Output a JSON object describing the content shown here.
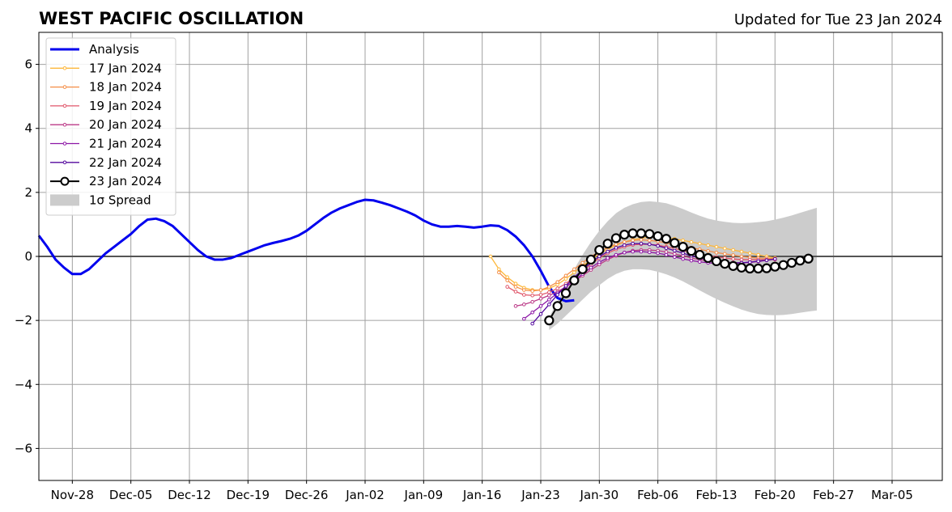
{
  "title": "WEST PACIFIC OSCILLATION",
  "updated": "Updated for Tue 23 Jan 2024",
  "chart_data": {
    "type": "line",
    "xlim": [
      "2023-11-24",
      "2024-03-11"
    ],
    "ylim": [
      -7,
      7
    ],
    "yticks": [
      6,
      4,
      2,
      0,
      -2,
      -4,
      -6
    ],
    "ytick_labels": [
      "6",
      "4",
      "2",
      "0",
      "−2",
      "−4",
      "−6"
    ],
    "xticks": [
      "2023-11-28",
      "2023-12-05",
      "2023-12-12",
      "2023-12-19",
      "2023-12-26",
      "2024-01-02",
      "2024-01-09",
      "2024-01-16",
      "2024-01-23",
      "2024-01-30",
      "2024-02-06",
      "2024-02-13",
      "2024-02-20",
      "2024-02-27",
      "2024-03-05"
    ],
    "xtick_labels": [
      "Nov-28",
      "Dec-05",
      "Dec-12",
      "Dec-19",
      "Dec-26",
      "Jan-02",
      "Jan-09",
      "Jan-16",
      "Jan-23",
      "Jan-30",
      "Feb-06",
      "Feb-13",
      "Feb-20",
      "Feb-27",
      "Mar-05"
    ],
    "grid": true,
    "legend_position": "top-left",
    "legend": [
      "Analysis",
      "17 Jan 2024",
      "18 Jan 2024",
      "19 Jan 2024",
      "20 Jan 2024",
      "21 Jan 2024",
      "22 Jan 2024",
      "23 Jan 2024",
      "1σ Spread"
    ],
    "analysis": {
      "name": "Analysis",
      "color": "#0000ee",
      "start": "2023-11-24",
      "values": [
        0.65,
        0.3,
        -0.1,
        -0.35,
        -0.55,
        -0.55,
        -0.4,
        -0.15,
        0.1,
        0.3,
        0.5,
        0.7,
        0.95,
        1.15,
        1.18,
        1.1,
        0.95,
        0.7,
        0.45,
        0.2,
        0.0,
        -0.1,
        -0.1,
        -0.05,
        0.05,
        0.15,
        0.25,
        0.35,
        0.42,
        0.48,
        0.55,
        0.65,
        0.8,
        1.0,
        1.2,
        1.37,
        1.5,
        1.6,
        1.7,
        1.77,
        1.75,
        1.68,
        1.6,
        1.5,
        1.4,
        1.28,
        1.12,
        1.0,
        0.93,
        0.93,
        0.95,
        0.93,
        0.9,
        0.93,
        0.97,
        0.95,
        0.82,
        0.62,
        0.35,
        0.0,
        -0.45,
        -0.95,
        -1.3,
        -1.4,
        -1.37
      ]
    },
    "forecasts": [
      {
        "name": "17 Jan 2024",
        "color": "#fdb73a",
        "start": "2024-01-17",
        "values": [
          0.0,
          -0.4,
          -0.65,
          -0.85,
          -0.98,
          -1.05,
          -1.05,
          -1.0,
          -0.88,
          -0.7,
          -0.5,
          -0.3,
          -0.1,
          0.08,
          0.22,
          0.35,
          0.45,
          0.52,
          0.57,
          0.6,
          0.6,
          0.58,
          0.55,
          0.5,
          0.45,
          0.4,
          0.35,
          0.3,
          0.25,
          0.2,
          0.15,
          0.1,
          0.05,
          0.0,
          -0.05
        ]
      },
      {
        "name": "18 Jan 2024",
        "color": "#f48d46",
        "start": "2024-01-18",
        "values": [
          -0.5,
          -0.75,
          -0.95,
          -1.05,
          -1.08,
          -1.05,
          -0.95,
          -0.8,
          -0.6,
          -0.4,
          -0.2,
          0.0,
          0.15,
          0.28,
          0.38,
          0.45,
          0.5,
          0.52,
          0.5,
          0.47,
          0.42,
          0.37,
          0.32,
          0.27,
          0.22,
          0.17,
          0.12,
          0.08,
          0.04,
          0.0,
          -0.03,
          -0.05,
          -0.06,
          -0.07
        ]
      },
      {
        "name": "19 Jan 2024",
        "color": "#e0566a",
        "start": "2024-01-19",
        "values": [
          -0.95,
          -1.1,
          -1.2,
          -1.22,
          -1.2,
          -1.12,
          -1.0,
          -0.85,
          -0.65,
          -0.45,
          -0.25,
          -0.05,
          0.1,
          0.22,
          0.3,
          0.36,
          0.38,
          0.38,
          0.35,
          0.3,
          0.25,
          0.18,
          0.12,
          0.06,
          0.02,
          -0.02,
          -0.05,
          -0.08,
          -0.1,
          -0.1,
          -0.1,
          -0.1,
          -0.1
        ]
      },
      {
        "name": "20 Jan 2024",
        "color": "#bb3987",
        "start": "2024-01-20",
        "values": [
          -1.55,
          -1.5,
          -1.42,
          -1.32,
          -1.22,
          -1.1,
          -0.95,
          -0.78,
          -0.6,
          -0.42,
          -0.25,
          -0.1,
          0.02,
          0.12,
          0.18,
          0.2,
          0.2,
          0.18,
          0.14,
          0.08,
          0.02,
          -0.05,
          -0.1,
          -0.14,
          -0.17,
          -0.19,
          -0.2,
          -0.2,
          -0.19,
          -0.16,
          -0.12,
          -0.08
        ]
      },
      {
        "name": "21 Jan 2024",
        "color": "#8d16a6",
        "start": "2024-01-21",
        "values": [
          -1.95,
          -1.75,
          -1.55,
          -1.35,
          -1.15,
          -0.95,
          -0.75,
          -0.55,
          -0.35,
          -0.18,
          -0.05,
          0.05,
          0.12,
          0.15,
          0.15,
          0.13,
          0.1,
          0.05,
          -0.02,
          -0.08,
          -0.13,
          -0.17,
          -0.2,
          -0.22,
          -0.22,
          -0.22,
          -0.2,
          -0.18,
          -0.15,
          -0.12,
          -0.08
        ]
      },
      {
        "name": "22 Jan 2024",
        "color": "#54089e",
        "start": "2024-01-22",
        "values": [
          -2.1,
          -1.8,
          -1.5,
          -1.2,
          -0.92,
          -0.65,
          -0.42,
          -0.2,
          0.0,
          0.15,
          0.27,
          0.35,
          0.4,
          0.4,
          0.38,
          0.33,
          0.26,
          0.18,
          0.1,
          0.02,
          -0.05,
          -0.1,
          -0.15,
          -0.18,
          -0.2,
          -0.2,
          -0.18,
          -0.15,
          -0.12,
          -0.08
        ]
      },
      {
        "name": "23 Jan 2024",
        "color": "#000000",
        "start": "2024-01-24",
        "values": [
          -2.0,
          -1.55,
          -1.15,
          -0.75,
          -0.4,
          -0.1,
          0.2,
          0.4,
          0.57,
          0.68,
          0.72,
          0.72,
          0.7,
          0.63,
          0.55,
          0.42,
          0.3,
          0.17,
          0.05,
          -0.05,
          -0.15,
          -0.23,
          -0.3,
          -0.35,
          -0.38,
          -0.38,
          -0.37,
          -0.32,
          -0.27,
          -0.2,
          -0.13,
          -0.07
        ]
      }
    ],
    "spread": {
      "name": "1σ Spread",
      "color": "#cccccc",
      "start": "2024-01-24",
      "upper": [
        -1.9,
        -1.4,
        -0.9,
        -0.4,
        0.05,
        0.45,
        0.8,
        1.1,
        1.35,
        1.52,
        1.63,
        1.7,
        1.72,
        1.7,
        1.66,
        1.58,
        1.48,
        1.37,
        1.27,
        1.18,
        1.12,
        1.08,
        1.05,
        1.04,
        1.05,
        1.07,
        1.1,
        1.15,
        1.21,
        1.28,
        1.36,
        1.44,
        1.52
      ],
      "lower": [
        -2.3,
        -2.1,
        -1.85,
        -1.6,
        -1.35,
        -1.1,
        -0.9,
        -0.7,
        -0.55,
        -0.45,
        -0.4,
        -0.4,
        -0.42,
        -0.48,
        -0.56,
        -0.66,
        -0.78,
        -0.92,
        -1.06,
        -1.2,
        -1.33,
        -1.45,
        -1.56,
        -1.66,
        -1.74,
        -1.8,
        -1.83,
        -1.84,
        -1.83,
        -1.8,
        -1.76,
        -1.72,
        -1.69
      ]
    }
  }
}
